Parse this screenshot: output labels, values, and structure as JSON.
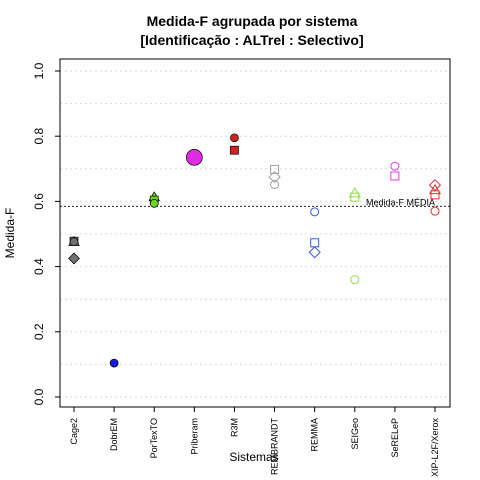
{
  "chart_data": {
    "type": "scatter",
    "title": "Medida-F agrupada por sistema",
    "subtitle": "[Identificação : ALTrel : Selectivo]",
    "xlabel": "Sistemas",
    "ylabel": "Medida-F",
    "ylim": [
      0.0,
      1.0
    ],
    "yticks": [
      "0.0",
      "0.2",
      "0.4",
      "0.6",
      "0.8",
      "1.0"
    ],
    "grid": true,
    "categories": [
      "Cage2",
      "DobrEM",
      "PorTexTO",
      "Priberam",
      "R3M",
      "REMBRANDT",
      "REMMA",
      "SEIGeo",
      "SeRELeP",
      "XIP-L2F/Xerox"
    ],
    "reference_line": {
      "label": "Medida-F MÉDIA",
      "value": 0.585
    },
    "points": [
      {
        "category": "Cage2",
        "y": 0.478,
        "shape": "square",
        "filled": true,
        "color": "#707070"
      },
      {
        "category": "Cage2",
        "y": 0.476,
        "shape": "triangle",
        "filled": true,
        "color": "#707070"
      },
      {
        "category": "Cage2",
        "y": 0.476,
        "shape": "circle",
        "filled": true,
        "color": "#707070"
      },
      {
        "category": "Cage2",
        "y": 0.425,
        "shape": "diamond",
        "filled": true,
        "color": "#707070"
      },
      {
        "category": "DobrEM",
        "y": 0.104,
        "shape": "circle",
        "filled": true,
        "color": "#1a1ae6"
      },
      {
        "category": "PorTexTO",
        "y": 0.613,
        "shape": "triangle",
        "filled": true,
        "color": "#6fd420"
      },
      {
        "category": "PorTexTO",
        "y": 0.604,
        "shape": "square",
        "filled": true,
        "color": "#6fd420"
      },
      {
        "category": "PorTexTO",
        "y": 0.594,
        "shape": "circle",
        "filled": true,
        "color": "#6fd420"
      },
      {
        "category": "Priberam",
        "y": 0.735,
        "shape": "circle",
        "filled": true,
        "color": "#e02ce0",
        "size": "large"
      },
      {
        "category": "R3M",
        "y": 0.795,
        "shape": "circle",
        "filled": true,
        "color": "#d62020"
      },
      {
        "category": "R3M",
        "y": 0.757,
        "shape": "square",
        "filled": true,
        "color": "#d62020"
      },
      {
        "category": "REMBRANDT",
        "y": 0.698,
        "shape": "square",
        "filled": false,
        "color": "#a0a0a0"
      },
      {
        "category": "REMBRANDT",
        "y": 0.675,
        "shape": "diamond",
        "filled": false,
        "color": "#a0a0a0"
      },
      {
        "category": "REMBRANDT",
        "y": 0.652,
        "shape": "circle",
        "filled": false,
        "color": "#a0a0a0"
      },
      {
        "category": "REMMA",
        "y": 0.568,
        "shape": "circle",
        "filled": false,
        "color": "#3a5ae0"
      },
      {
        "category": "REMMA",
        "y": 0.473,
        "shape": "square",
        "filled": false,
        "color": "#3a5ae0"
      },
      {
        "category": "REMMA",
        "y": 0.444,
        "shape": "diamond",
        "filled": false,
        "color": "#3a5ae0"
      },
      {
        "category": "SEIGeo",
        "y": 0.625,
        "shape": "triangle",
        "filled": false,
        "color": "#8ee04a"
      },
      {
        "category": "SEIGeo",
        "y": 0.613,
        "shape": "square",
        "filled": false,
        "color": "#8ee04a"
      },
      {
        "category": "SEIGeo",
        "y": 0.36,
        "shape": "circle",
        "filled": false,
        "color": "#8ee04a"
      },
      {
        "category": "SeRELeP",
        "y": 0.708,
        "shape": "circle",
        "filled": false,
        "color": "#e040e0"
      },
      {
        "category": "SeRELeP",
        "y": 0.678,
        "shape": "square",
        "filled": false,
        "color": "#e040e0"
      },
      {
        "category": "XIP-L2F/Xerox",
        "y": 0.65,
        "shape": "diamond",
        "filled": false,
        "color": "#e03030"
      },
      {
        "category": "XIP-L2F/Xerox",
        "y": 0.635,
        "shape": "triangle",
        "filled": false,
        "color": "#e03030"
      },
      {
        "category": "XIP-L2F/Xerox",
        "y": 0.62,
        "shape": "square",
        "filled": false,
        "color": "#e03030"
      },
      {
        "category": "XIP-L2F/Xerox",
        "y": 0.57,
        "shape": "circle",
        "filled": false,
        "color": "#e03030"
      }
    ]
  }
}
